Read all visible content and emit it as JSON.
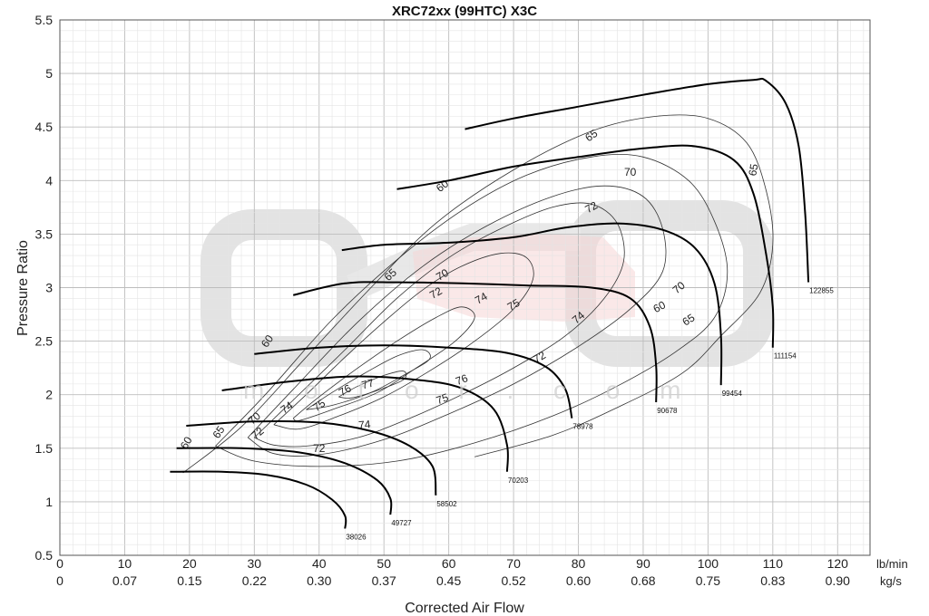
{
  "chart_data": {
    "type": "line",
    "title": "XRC72xx (99HTC) X3C",
    "xlabel": "Corrected Air Flow",
    "ylabel": "Pressure Ratio",
    "x_unit_primary": "lb/min",
    "x_unit_secondary": "kg/s",
    "xlim": [
      0,
      125
    ],
    "ylim": [
      0.5,
      5.5
    ],
    "x_ticks": [
      0,
      10,
      20,
      30,
      40,
      50,
      60,
      70,
      80,
      90,
      100,
      110,
      120
    ],
    "x_ticks_kgs": [
      "0",
      "0.07",
      "0.15",
      "0.22",
      "0.30",
      "0.37",
      "0.45",
      "0.52",
      "0.60",
      "0.68",
      "0.75",
      "0.83",
      "0.90"
    ],
    "y_ticks": [
      "0.5",
      "1",
      "1.5",
      "2",
      "2.5",
      "3",
      "3.5",
      "4",
      "4.5",
      "5",
      "5.5"
    ],
    "grid": true,
    "watermark_text": "m o t o r . c o m",
    "speed_lines": [
      {
        "label": "38026",
        "points": [
          [
            17,
            1.28
          ],
          [
            25,
            1.28
          ],
          [
            32,
            1.25
          ],
          [
            38,
            1.16
          ],
          [
            42,
            1.02
          ],
          [
            44,
            0.87
          ],
          [
            44,
            0.75
          ]
        ]
      },
      {
        "label": "49727",
        "points": [
          [
            18,
            1.5
          ],
          [
            28,
            1.5
          ],
          [
            37,
            1.46
          ],
          [
            44,
            1.36
          ],
          [
            49,
            1.2
          ],
          [
            51,
            1.03
          ],
          [
            51,
            0.88
          ]
        ]
      },
      {
        "label": "58502",
        "points": [
          [
            19.5,
            1.71
          ],
          [
            30,
            1.75
          ],
          [
            40,
            1.74
          ],
          [
            48,
            1.66
          ],
          [
            54,
            1.52
          ],
          [
            57.5,
            1.33
          ],
          [
            58,
            1.06
          ]
        ]
      },
      {
        "label": "70203",
        "points": [
          [
            25,
            2.04
          ],
          [
            35,
            2.12
          ],
          [
            45,
            2.17
          ],
          [
            55,
            2.14
          ],
          [
            62,
            2.06
          ],
          [
            67,
            1.86
          ],
          [
            69,
            1.53
          ],
          [
            69,
            1.28
          ]
        ]
      },
      {
        "label": "78978",
        "points": [
          [
            30,
            2.38
          ],
          [
            40,
            2.44
          ],
          [
            50,
            2.46
          ],
          [
            60,
            2.44
          ],
          [
            69,
            2.39
          ],
          [
            75,
            2.26
          ],
          [
            78,
            2.05
          ],
          [
            79,
            1.78
          ]
        ]
      },
      {
        "label": "90678",
        "points": [
          [
            36,
            2.93
          ],
          [
            44,
            3.04
          ],
          [
            52,
            3.05
          ],
          [
            62,
            3.04
          ],
          [
            72,
            3.02
          ],
          [
            82,
            3.0
          ],
          [
            88,
            2.9
          ],
          [
            91,
            2.64
          ],
          [
            92,
            2.27
          ],
          [
            92,
            1.93
          ]
        ]
      },
      {
        "label": "99454",
        "points": [
          [
            43.5,
            3.35
          ],
          [
            50,
            3.4
          ],
          [
            60,
            3.42
          ],
          [
            70,
            3.47
          ],
          [
            78,
            3.56
          ],
          [
            86,
            3.6
          ],
          [
            93,
            3.54
          ],
          [
            98,
            3.37
          ],
          [
            101,
            3.04
          ],
          [
            102,
            2.55
          ],
          [
            102,
            2.09
          ]
        ]
      },
      {
        "label": "111154",
        "points": [
          [
            52,
            3.92
          ],
          [
            60,
            4.0
          ],
          [
            70,
            4.13
          ],
          [
            80,
            4.22
          ],
          [
            90,
            4.3
          ],
          [
            98,
            4.32
          ],
          [
            104,
            4.19
          ],
          [
            107,
            3.88
          ],
          [
            109,
            3.3
          ],
          [
            110,
            2.82
          ],
          [
            110,
            2.44
          ]
        ]
      },
      {
        "label": "122855",
        "points": [
          [
            62.5,
            4.48
          ],
          [
            70,
            4.58
          ],
          [
            80,
            4.69
          ],
          [
            90,
            4.8
          ],
          [
            100,
            4.9
          ],
          [
            107,
            4.94
          ],
          [
            109,
            4.93
          ],
          [
            112,
            4.72
          ],
          [
            114,
            4.32
          ],
          [
            115,
            3.68
          ],
          [
            115.5,
            3.05
          ]
        ]
      }
    ],
    "efficiency_islands": [
      {
        "label": "60",
        "labels": [
          "60",
          "60",
          "60",
          "60"
        ]
      },
      {
        "label": "65",
        "labels": [
          "65",
          "65",
          "65",
          "65",
          "65"
        ]
      },
      {
        "label": "70",
        "labels": [
          "70",
          "70",
          "70",
          "70"
        ]
      },
      {
        "label": "72",
        "labels": [
          "72",
          "72",
          "72",
          "72",
          "72"
        ]
      },
      {
        "label": "74",
        "labels": [
          "74",
          "74",
          "74",
          "74"
        ]
      },
      {
        "label": "75",
        "labels": [
          "75",
          "75",
          "75"
        ]
      },
      {
        "label": "76",
        "labels": [
          "76",
          "76"
        ]
      },
      {
        "label": "77",
        "labels": [
          "77"
        ]
      }
    ]
  }
}
